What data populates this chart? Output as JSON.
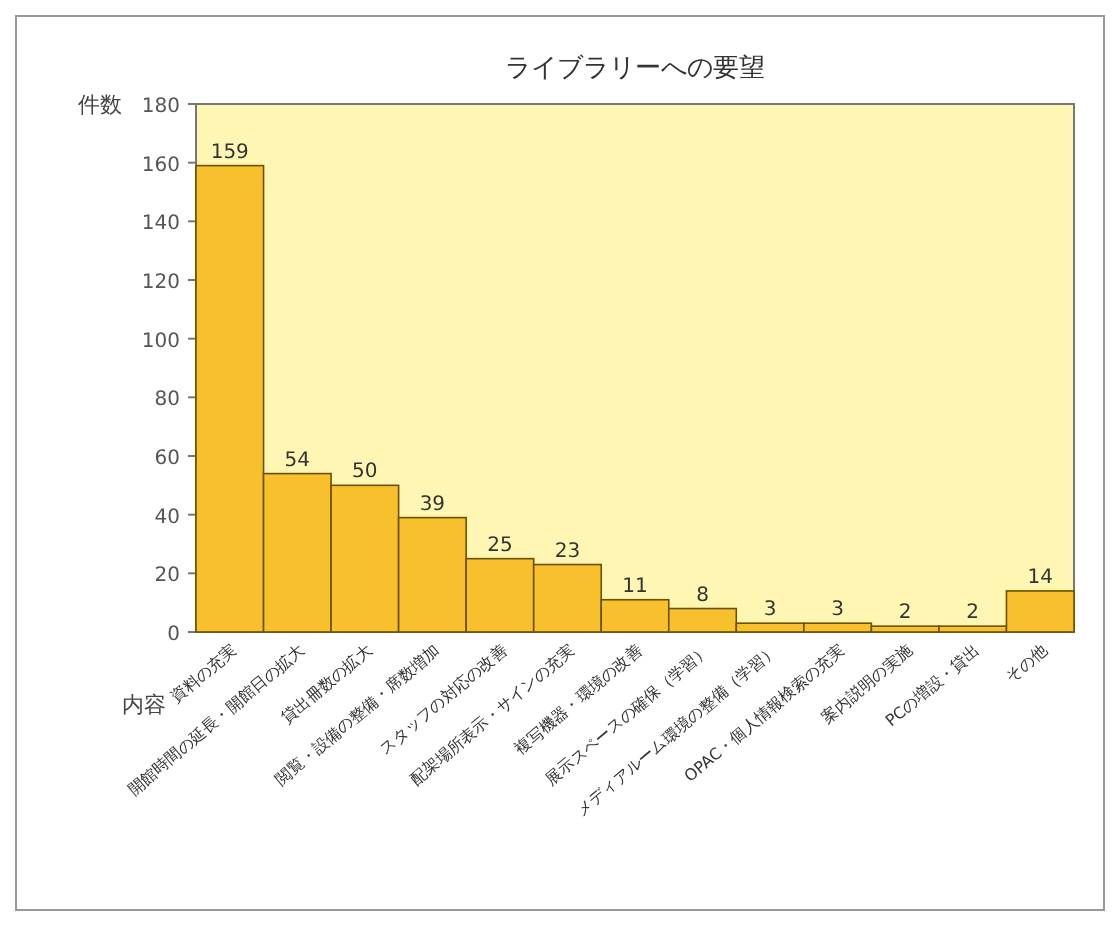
{
  "chart_data": {
    "type": "bar",
    "title": "ライブラリーへの要望",
    "xlabel": "内容",
    "ylabel": "件数",
    "categories": [
      "資料の充実",
      "開館時間の延長・開館日の拡大",
      "貸出冊数の拡大",
      "閲覧・設備の整備・席数増加",
      "スタッフの対応の改善",
      "配架場所表示・サインの充実",
      "複写機器・環境の改善",
      "展示スペースの確保（学習）",
      "メディアルーム環境の整備（学習）",
      "OPAC・個人情報検索の充実",
      "案内説明の実施",
      "PCの増設・貸出",
      "その他"
    ],
    "values": [
      159,
      54,
      50,
      39,
      25,
      23,
      11,
      8,
      3,
      3,
      2,
      2,
      14
    ],
    "color": "#f7c02c",
    "ylim": [
      0,
      180
    ],
    "yticks": [
      0,
      20,
      40,
      60,
      80,
      100,
      120,
      140,
      160,
      180
    ],
    "data_labels": true
  }
}
